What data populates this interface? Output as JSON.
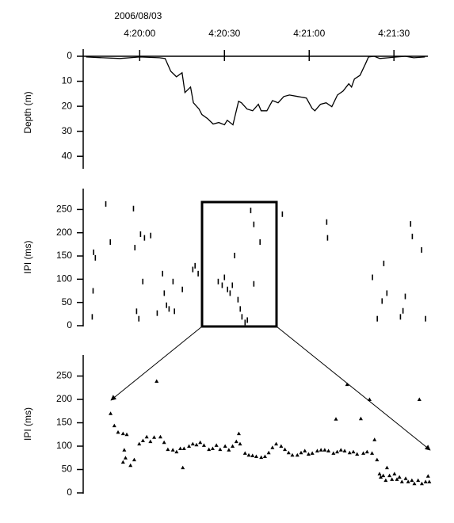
{
  "chart_data": [
    {
      "type": "line",
      "date_label": "2006/08/03",
      "ylabel": "Depth (m)",
      "color": "#000000",
      "xlim": [
        15580,
        15702
      ],
      "xticks": [
        {
          "value": 15600,
          "label": "4:20:00"
        },
        {
          "value": 15630,
          "label": "4:20:30"
        },
        {
          "value": 15660,
          "label": "4:21:00"
        },
        {
          "value": 15690,
          "label": "4:21:30"
        }
      ],
      "ylim": [
        0,
        45
      ],
      "y_inverted": true,
      "yticks": [
        0,
        10,
        20,
        30,
        40
      ],
      "x": [
        15581,
        15587,
        15593,
        15600,
        15607,
        15609,
        15611,
        15613,
        15615,
        15616,
        15618,
        15619,
        15621,
        15622,
        15624,
        15626,
        15628,
        15630,
        15631,
        15633,
        15635,
        15636,
        15638,
        15640,
        15642,
        15643,
        15645,
        15647,
        15649,
        15651,
        15653,
        15656,
        15659,
        15661,
        15662,
        15664,
        15666,
        15668,
        15670,
        15672,
        15674,
        15675,
        15676,
        15678,
        15680,
        15681,
        15683,
        15685,
        15688,
        15691,
        15694,
        15697,
        15701
      ],
      "y": [
        0.3,
        0.6,
        0.9,
        0.3,
        0.6,
        0.9,
        6,
        8.2,
        6.6,
        14.5,
        12.3,
        18.6,
        21.1,
        23.3,
        24.9,
        27.1,
        26.5,
        27.4,
        25.6,
        27.4,
        18,
        18.6,
        21.1,
        21.8,
        19.2,
        21.8,
        21.8,
        17.7,
        18.6,
        16.1,
        15.5,
        16.1,
        16.7,
        20.8,
        21.8,
        19.2,
        18.6,
        20.2,
        15.5,
        13.9,
        11,
        12.3,
        9.1,
        7.6,
        2.8,
        0.3,
        0,
        0.9,
        0.6,
        0.3,
        0,
        0.6,
        0.3
      ]
    },
    {
      "type": "scatter",
      "marker": "dash",
      "ylabel": "IPI (ms)",
      "color": "#000000",
      "xlim": [
        15580,
        15702
      ],
      "ylim": [
        0,
        295
      ],
      "yticks": [
        0,
        50,
        100,
        150,
        200,
        250
      ],
      "x": [
        15583.2,
        15583.5,
        15583.7,
        15584.3,
        15588,
        15589.6,
        15597.8,
        15598.3,
        15598.9,
        15599.7,
        15600.3,
        15601.1,
        15601.7,
        15603.9,
        15606.2,
        15608.1,
        15608.7,
        15609.5,
        15610.4,
        15611.8,
        15612.3,
        15615.1,
        15618.8,
        15619.6,
        15620.7,
        15627.8,
        15629.2,
        15630,
        15631.1,
        15632,
        15632.8,
        15633.6,
        15634.8,
        15635.6,
        15636.2,
        15637.3,
        15638.1,
        15639.3,
        15640.4,
        15640.4,
        15642.6,
        15650.5,
        15666.2,
        15666.5,
        15682.4,
        15684.1,
        15685.8,
        15686.4,
        15687.5,
        15692.3,
        15693.2,
        15694,
        15695.9,
        15696.5,
        15699.8,
        15701.2
      ],
      "y": [
        19,
        75,
        158,
        146,
        262,
        180,
        252,
        168,
        31,
        15,
        197,
        95,
        189,
        194,
        27,
        112,
        70,
        44,
        36,
        95,
        31,
        78,
        121,
        129,
        112,
        95,
        87,
        104,
        78,
        70,
        87,
        151,
        56,
        36,
        19,
        7,
        12,
        248,
        218,
        90,
        180,
        240,
        223,
        189,
        104,
        15,
        53,
        134,
        70,
        19,
        32,
        63,
        219,
        192,
        163,
        15
      ]
    },
    {
      "type": "scatter",
      "marker": "triangle",
      "ylabel": "IPI (ms)",
      "color": "#000000",
      "xlim": [
        15620,
        15648
      ],
      "ylim": [
        0,
        295
      ],
      "yticks": [
        0,
        50,
        100,
        150,
        200,
        250
      ],
      "x": [
        15622.2,
        15622.5,
        15622.8,
        15623.2,
        15623.3,
        15623.5,
        15623.2,
        15623.4,
        15623.8,
        15624.1,
        15624.5,
        15624.8,
        15625.1,
        15625.4,
        15625.7,
        15625.9,
        15626.2,
        15626.5,
        15626.8,
        15627.2,
        15627.5,
        15627.8,
        15628,
        15628.1,
        15628.5,
        15628.8,
        15629.1,
        15629.4,
        15629.7,
        15630.1,
        15630.4,
        15630.7,
        15631,
        15631.4,
        15631.7,
        15632,
        15632.3,
        15632.5,
        15632.6,
        15633,
        15633.3,
        15633.6,
        15633.9,
        15634.3,
        15634.6,
        15634.9,
        15635.2,
        15635.5,
        15635.9,
        15636.2,
        15636.5,
        15636.8,
        15637.2,
        15637.5,
        15637.8,
        15638.1,
        15638.4,
        15638.8,
        15639.1,
        15639.4,
        15639.7,
        15640.1,
        15640.3,
        15640.4,
        15640.7,
        15641,
        15641.2,
        15641.4,
        15641.7,
        15642,
        15642.3,
        15642.5,
        15642.8,
        15643,
        15643.2,
        15643.4,
        15643.6,
        15643.8,
        15643.9,
        15644.1,
        15644.3,
        15644.4,
        15644.6,
        15644.8,
        15645,
        15645.2,
        15645.4,
        15645.6,
        15645.9,
        15646.1,
        15646.4,
        15646.6,
        15646.9,
        15647,
        15647.2,
        15647.5,
        15647.7,
        15647.8
      ],
      "y": [
        170,
        144,
        130,
        127,
        92,
        125,
        66,
        75,
        59,
        71,
        105,
        112,
        120,
        110,
        119,
        239,
        120,
        108,
        93,
        92,
        88,
        95,
        54,
        95,
        100,
        105,
        103,
        108,
        102,
        93,
        95,
        102,
        93,
        100,
        92,
        100,
        110,
        127,
        105,
        85,
        81,
        80,
        78,
        76,
        78,
        86,
        97,
        105,
        100,
        93,
        86,
        81,
        81,
        86,
        90,
        83,
        85,
        90,
        92,
        92,
        90,
        85,
        158,
        88,
        92,
        90,
        232,
        86,
        88,
        83,
        159,
        85,
        88,
        200,
        85,
        114,
        71,
        41,
        34,
        37,
        27,
        54,
        37,
        29,
        41,
        29,
        34,
        24,
        31,
        24,
        27,
        20,
        27,
        200,
        20,
        24,
        36,
        24
      ]
    }
  ]
}
